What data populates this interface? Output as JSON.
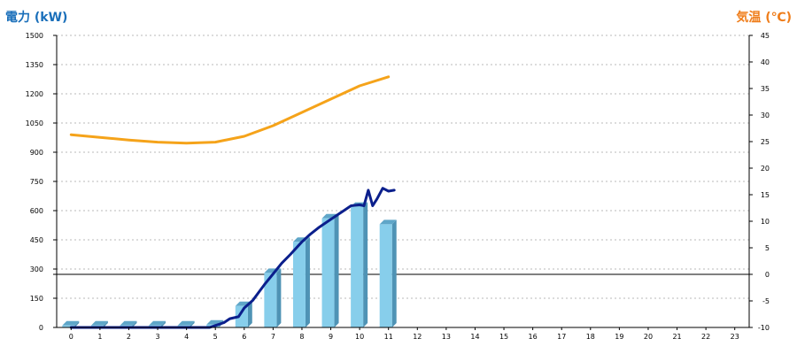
{
  "chart_data": {
    "type": "bar+line",
    "title": "",
    "left_axis": {
      "label": "電力 (kW)",
      "range": [
        0,
        1500
      ],
      "ticks": [
        0,
        150,
        300,
        450,
        600,
        750,
        900,
        1050,
        1200,
        1350,
        1500
      ]
    },
    "right_axis": {
      "label": "気温 (℃)",
      "range": [
        -10,
        45
      ],
      "ticks": [
        -10,
        -5,
        0,
        5,
        10,
        15,
        20,
        25,
        30,
        35,
        40,
        45
      ]
    },
    "x": {
      "categories": [
        "0",
        "1",
        "2",
        "3",
        "4",
        "5",
        "6",
        "7",
        "8",
        "9",
        "10",
        "11",
        "12",
        "13",
        "14",
        "15",
        "16",
        "17",
        "18",
        "19",
        "20",
        "21",
        "22",
        "23"
      ]
    },
    "grid": "horizontal-dotted",
    "series": [
      {
        "type": "bar",
        "axis": "left",
        "color": "#87ceeb",
        "values": [
          10,
          10,
          10,
          10,
          10,
          15,
          110,
          280,
          440,
          560,
          620,
          530
        ]
      },
      {
        "type": "line",
        "axis": "left",
        "color": "#0b1f8c",
        "points": [
          [
            0,
            0
          ],
          [
            1,
            0
          ],
          [
            2,
            0
          ],
          [
            3,
            0
          ],
          [
            4,
            0
          ],
          [
            4.8,
            0
          ],
          [
            5,
            10
          ],
          [
            5.3,
            25
          ],
          [
            5.5,
            45
          ],
          [
            5.8,
            55
          ],
          [
            6,
            100
          ],
          [
            6.3,
            140
          ],
          [
            6.5,
            180
          ],
          [
            6.7,
            220
          ],
          [
            7,
            275
          ],
          [
            7.3,
            330
          ],
          [
            7.6,
            375
          ],
          [
            8,
            440
          ],
          [
            8.3,
            480
          ],
          [
            8.6,
            515
          ],
          [
            9,
            555
          ],
          [
            9.4,
            595
          ],
          [
            9.7,
            625
          ],
          [
            10,
            630
          ],
          [
            10.15,
            625
          ],
          [
            10.3,
            705
          ],
          [
            10.45,
            625
          ],
          [
            10.6,
            660
          ],
          [
            10.8,
            715
          ],
          [
            11,
            700
          ],
          [
            11.2,
            705
          ]
        ]
      },
      {
        "type": "line",
        "axis": "right",
        "color": "#f5a31a",
        "points": [
          [
            0,
            26.3
          ],
          [
            1,
            25.8
          ],
          [
            2,
            25.3
          ],
          [
            3,
            24.9
          ],
          [
            4,
            24.7
          ],
          [
            5,
            24.9
          ],
          [
            6,
            26.0
          ],
          [
            7,
            28.0
          ],
          [
            8,
            30.5
          ],
          [
            9,
            33.0
          ],
          [
            10,
            35.5
          ],
          [
            11,
            37.2
          ]
        ]
      }
    ],
    "reference_line": {
      "axis": "right",
      "value": 0,
      "color": "#000000"
    }
  }
}
